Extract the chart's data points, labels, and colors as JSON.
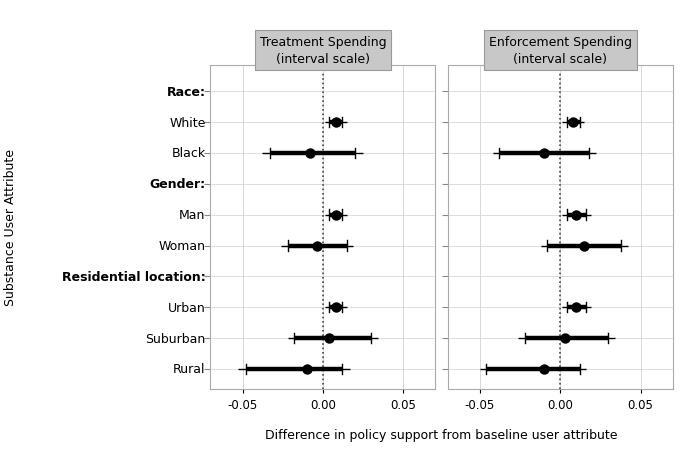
{
  "panel_titles": [
    "Treatment Spending\n(interval scale)",
    "Enforcement Spending\n(interval scale)"
  ],
  "categories": [
    "Race:",
    "White",
    "Black",
    "Gender:",
    "Man",
    "Woman",
    "Residential location:",
    "Urban",
    "Suburban",
    "Rural"
  ],
  "y_positions": [
    9,
    8,
    7,
    6,
    5,
    4,
    3,
    2,
    1,
    0
  ],
  "header_indices": [
    0,
    3,
    6
  ],
  "treatment": {
    "est": [
      null,
      0.008,
      -0.008,
      null,
      0.008,
      -0.004,
      null,
      0.008,
      0.004,
      -0.01
    ],
    "lo95": [
      null,
      0.004,
      -0.033,
      null,
      0.004,
      -0.022,
      null,
      0.004,
      -0.018,
      -0.048
    ],
    "hi95": [
      null,
      0.012,
      0.02,
      null,
      0.012,
      0.015,
      null,
      0.012,
      0.03,
      0.012
    ],
    "lo99": [
      null,
      0.001,
      -0.038,
      null,
      0.001,
      -0.026,
      null,
      0.001,
      -0.022,
      -0.053
    ],
    "hi99": [
      null,
      0.015,
      0.025,
      null,
      0.015,
      0.019,
      null,
      0.015,
      0.034,
      0.017
    ]
  },
  "enforcement": {
    "est": [
      null,
      0.008,
      -0.01,
      null,
      0.01,
      0.015,
      null,
      0.01,
      0.003,
      -0.01
    ],
    "lo95": [
      null,
      0.004,
      -0.038,
      null,
      0.004,
      -0.008,
      null,
      0.004,
      -0.022,
      -0.046
    ],
    "hi95": [
      null,
      0.012,
      0.018,
      null,
      0.016,
      0.038,
      null,
      0.016,
      0.03,
      0.012
    ],
    "lo99": [
      null,
      0.001,
      -0.042,
      null,
      0.001,
      -0.012,
      null,
      0.001,
      -0.026,
      -0.05
    ],
    "hi99": [
      null,
      0.015,
      0.022,
      null,
      0.019,
      0.042,
      null,
      0.019,
      0.034,
      0.016
    ]
  },
  "xlim": [
    -0.07,
    0.07
  ],
  "xticks": [
    -0.05,
    0.0,
    0.05
  ],
  "xticklabels": [
    "-0.05",
    "0.00",
    "0.05"
  ],
  "xlabel": "Difference in policy support from baseline user attribute",
  "ylabel": "Substance User Attribute",
  "fig_bg": "#ffffff",
  "plot_bg": "#ffffff",
  "grid_color": "#d8d8d8",
  "panel_hdr_bg": "#c8c8c8",
  "panel_hdr_edge": "#999999"
}
